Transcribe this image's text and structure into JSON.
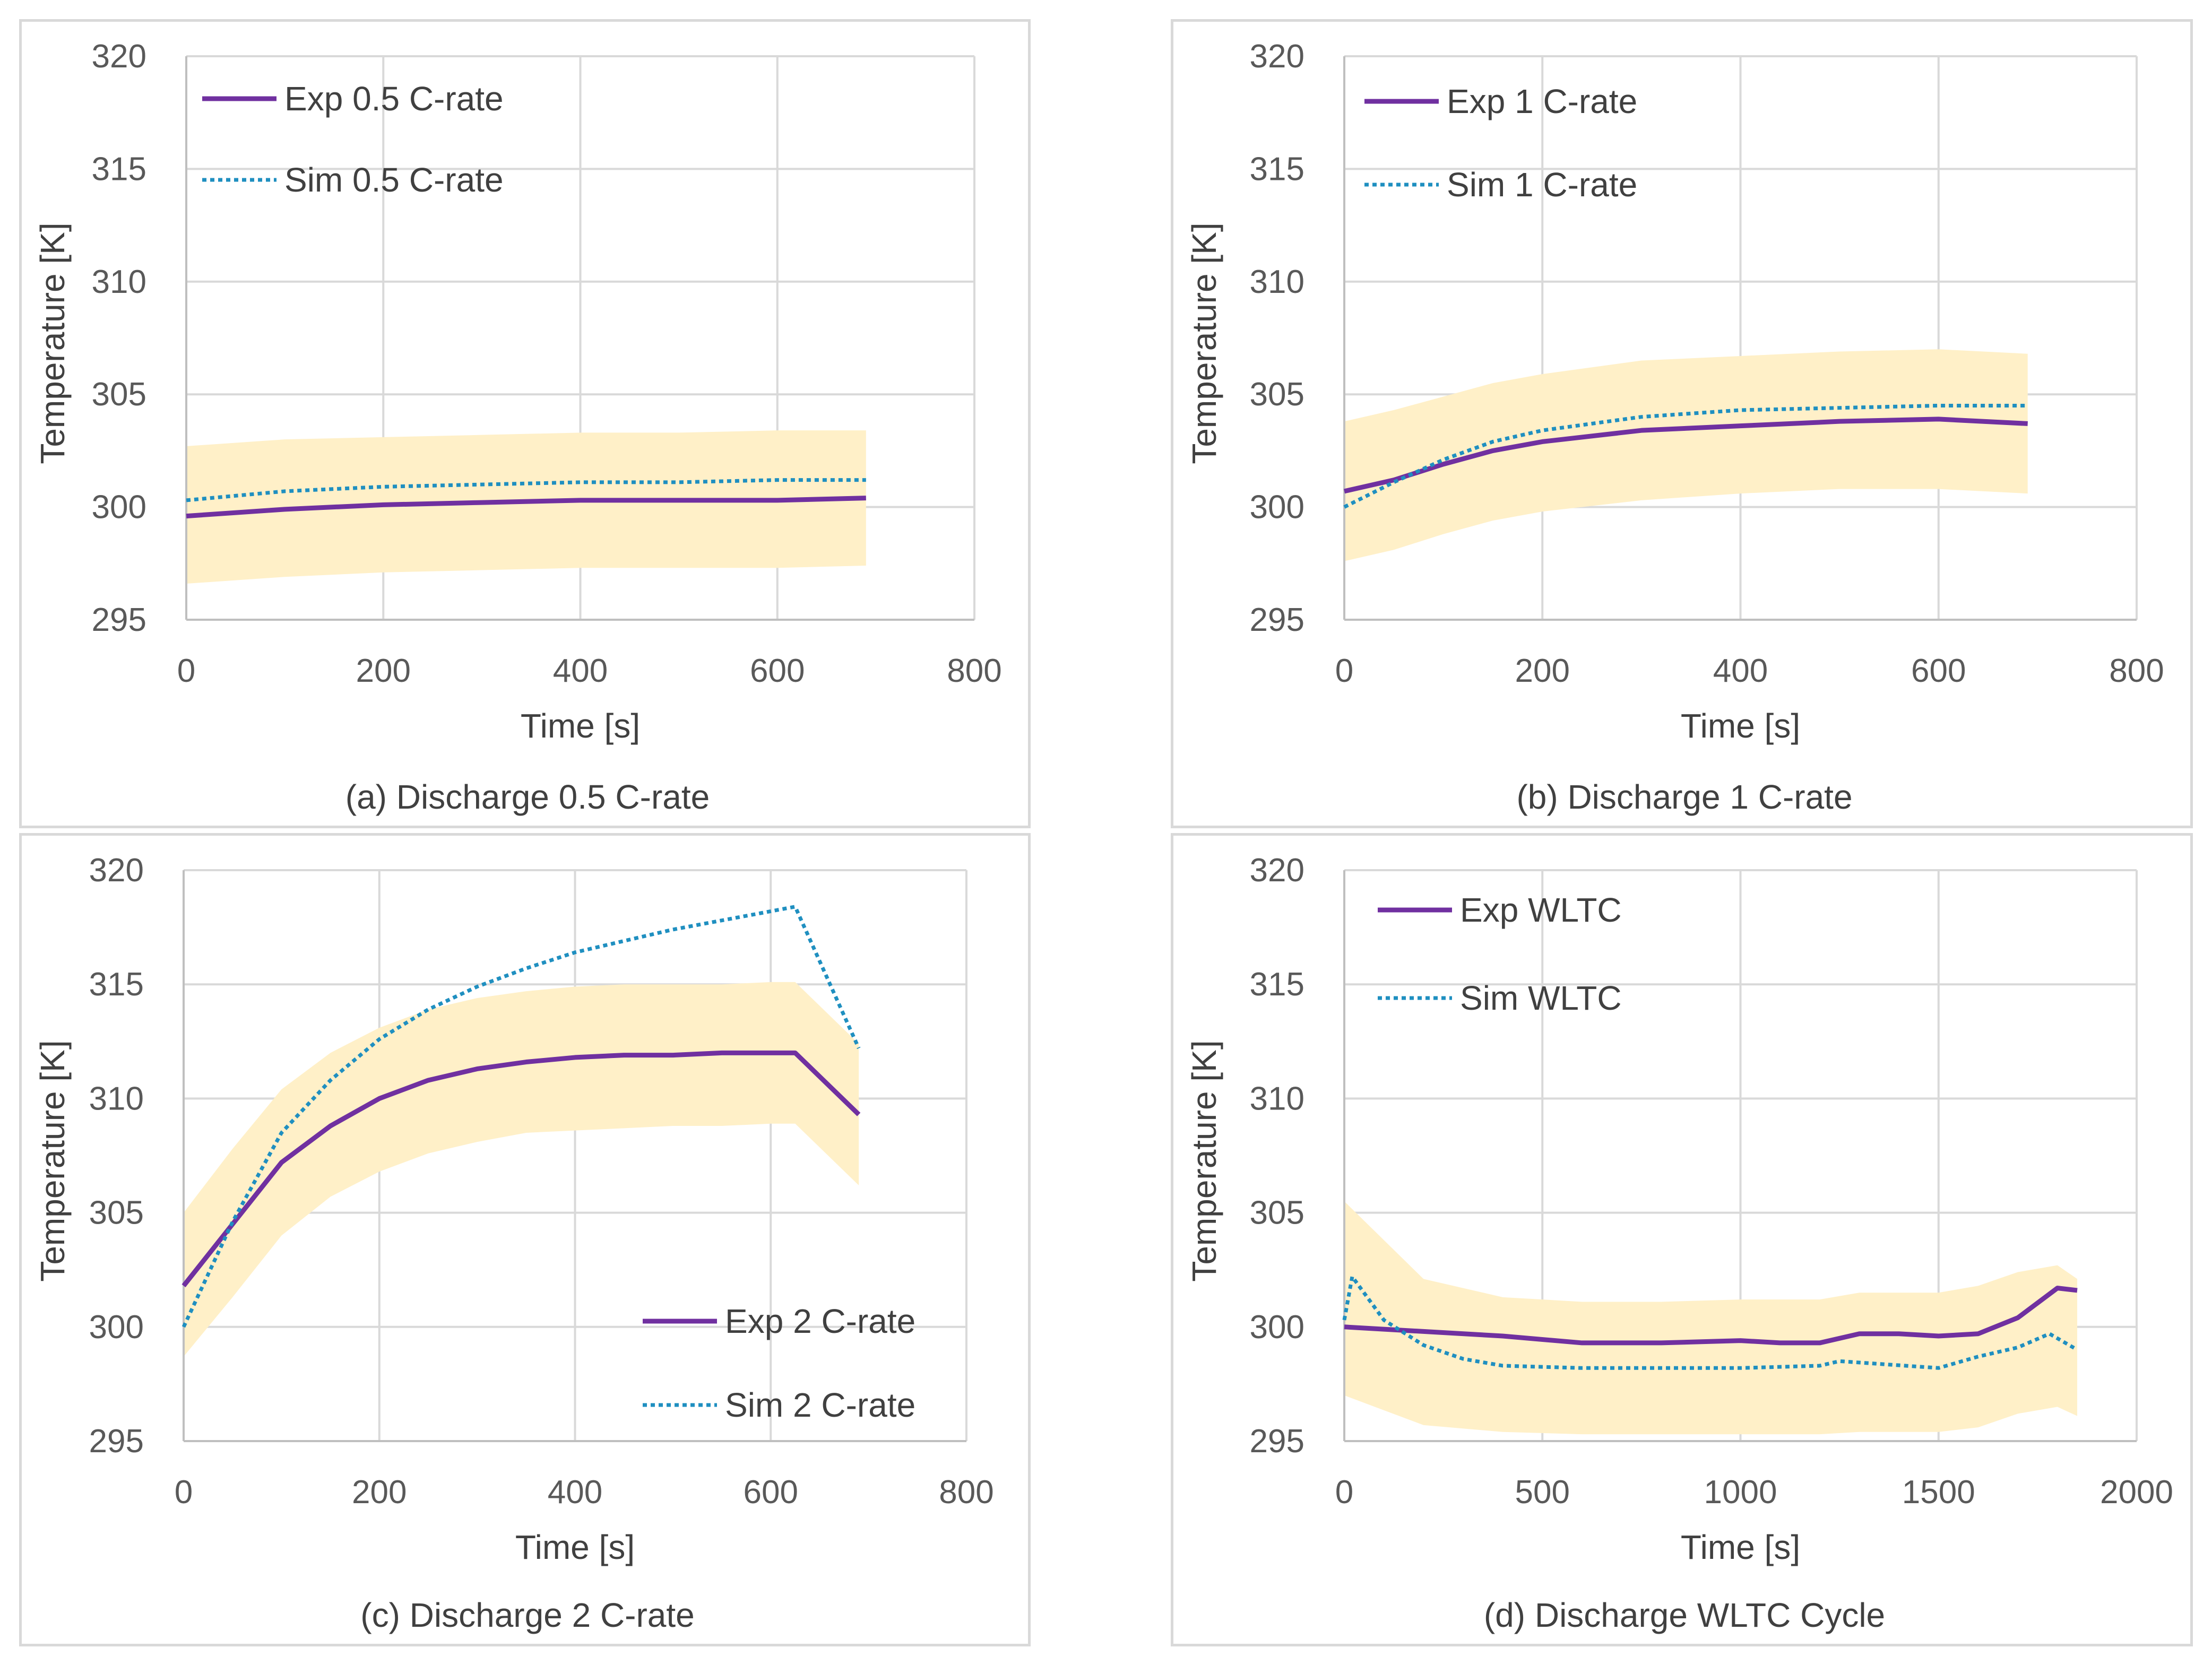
{
  "colors": {
    "exp": "#7030a0",
    "sim": "#1f8fc0",
    "band": "#fff0c8",
    "grid": "#d9d9d9",
    "axis": "#bfbfbf"
  },
  "chart_data": [
    {
      "type": "line",
      "caption": "(a) Discharge 0.5 C-rate",
      "xlabel": "Time [s]",
      "ylabel": "Temperature [K]",
      "xlim": [
        0,
        800
      ],
      "ylim": [
        295,
        320
      ],
      "xticks": [
        0,
        200,
        400,
        600,
        800
      ],
      "yticks": [
        295,
        300,
        305,
        310,
        315,
        320
      ],
      "legend_position": "top-left",
      "series": [
        {
          "name": "Exp 0.5 C-rate",
          "style": "solid",
          "x": [
            0,
            100,
            200,
            300,
            400,
            500,
            600,
            690
          ],
          "values": [
            299.6,
            299.9,
            300.1,
            300.2,
            300.3,
            300.3,
            300.3,
            300.4
          ]
        },
        {
          "name": "Sim 0.5 C-rate",
          "style": "dotted",
          "x": [
            0,
            100,
            200,
            300,
            400,
            500,
            600,
            690
          ],
          "values": [
            300.3,
            300.7,
            300.9,
            301.0,
            301.1,
            301.1,
            301.2,
            301.2
          ]
        }
      ],
      "band": {
        "x": [
          0,
          100,
          200,
          300,
          400,
          500,
          600,
          690
        ],
        "upper": [
          302.7,
          303.0,
          303.1,
          303.2,
          303.3,
          303.3,
          303.4,
          303.4
        ],
        "lower": [
          296.6,
          296.9,
          297.1,
          297.2,
          297.3,
          297.3,
          297.3,
          297.4
        ]
      }
    },
    {
      "type": "line",
      "caption": "(b) Discharge 1 C-rate",
      "xlabel": "Time [s]",
      "ylabel": "Temperature [K]",
      "xlim": [
        0,
        800
      ],
      "ylim": [
        295,
        320
      ],
      "xticks": [
        0,
        200,
        400,
        600,
        800
      ],
      "yticks": [
        295,
        300,
        305,
        310,
        315,
        320
      ],
      "legend_position": "top-left",
      "series": [
        {
          "name": "Exp 1 C-rate",
          "style": "solid",
          "x": [
            0,
            50,
            100,
            150,
            200,
            300,
            400,
            500,
            600,
            690
          ],
          "values": [
            300.7,
            301.2,
            301.9,
            302.5,
            302.9,
            303.4,
            303.6,
            303.8,
            303.9,
            303.7
          ]
        },
        {
          "name": "Sim 1 C-rate",
          "style": "dotted",
          "x": [
            0,
            50,
            100,
            150,
            200,
            300,
            400,
            500,
            600,
            690
          ],
          "values": [
            300.0,
            301.1,
            302.1,
            302.9,
            303.4,
            304.0,
            304.3,
            304.4,
            304.5,
            304.5
          ]
        }
      ],
      "band": {
        "x": [
          0,
          50,
          100,
          150,
          200,
          300,
          400,
          500,
          600,
          690
        ],
        "upper": [
          303.8,
          304.3,
          304.9,
          305.5,
          305.9,
          306.5,
          306.7,
          306.9,
          307.0,
          306.8
        ],
        "lower": [
          297.6,
          298.1,
          298.8,
          299.4,
          299.8,
          300.3,
          300.6,
          300.8,
          300.8,
          300.6
        ]
      }
    },
    {
      "type": "line",
      "caption": "(c) Discharge 2 C-rate",
      "xlabel": "Time [s]",
      "ylabel": "Temperature [K]",
      "xlim": [
        0,
        800
      ],
      "ylim": [
        295,
        320
      ],
      "xticks": [
        0,
        200,
        400,
        600,
        800
      ],
      "yticks": [
        295,
        300,
        305,
        310,
        315,
        320
      ],
      "legend_position": "bottom-right",
      "series": [
        {
          "name": "Exp 2 C-rate",
          "style": "solid",
          "x": [
            0,
            50,
            100,
            150,
            200,
            250,
            300,
            350,
            400,
            450,
            500,
            550,
            600,
            625,
            690
          ],
          "values": [
            301.8,
            304.5,
            307.2,
            308.8,
            310.0,
            310.8,
            311.3,
            311.6,
            311.8,
            311.9,
            311.9,
            312.0,
            312.0,
            312.0,
            309.3
          ]
        },
        {
          "name": "Sim 2 C-rate",
          "style": "dotted",
          "x": [
            0,
            50,
            100,
            150,
            200,
            250,
            300,
            350,
            400,
            450,
            500,
            550,
            600,
            625,
            690
          ],
          "values": [
            300.0,
            304.6,
            308.5,
            310.8,
            312.6,
            313.9,
            314.9,
            315.7,
            316.4,
            316.9,
            317.4,
            317.8,
            318.2,
            318.4,
            312.2
          ]
        }
      ],
      "band": {
        "x": [
          0,
          50,
          100,
          150,
          200,
          250,
          300,
          350,
          400,
          450,
          500,
          550,
          600,
          625,
          690
        ],
        "upper": [
          305.0,
          307.8,
          310.4,
          312.0,
          313.1,
          313.9,
          314.4,
          314.7,
          314.9,
          315.0,
          315.0,
          315.0,
          315.1,
          315.1,
          312.4
        ],
        "lower": [
          298.7,
          301.3,
          304.0,
          305.7,
          306.8,
          307.6,
          308.1,
          308.5,
          308.6,
          308.7,
          308.8,
          308.8,
          308.9,
          308.9,
          306.2
        ]
      }
    },
    {
      "type": "line",
      "caption": "(d) Discharge WLTC Cycle",
      "xlabel": "Time [s]",
      "ylabel": "Temperature [K]",
      "xlim": [
        0,
        2000
      ],
      "ylim": [
        295,
        320
      ],
      "xticks": [
        0,
        500,
        1000,
        1500,
        2000
      ],
      "yticks": [
        295,
        300,
        305,
        310,
        315,
        320
      ],
      "legend_position": "top-left",
      "series": [
        {
          "name": "Exp WLTC",
          "style": "solid",
          "x": [
            0,
            200,
            400,
            600,
            800,
            1000,
            1100,
            1200,
            1300,
            1400,
            1500,
            1600,
            1700,
            1800,
            1850
          ],
          "values": [
            300.0,
            299.8,
            299.6,
            299.3,
            299.3,
            299.4,
            299.3,
            299.3,
            299.7,
            299.7,
            299.6,
            299.7,
            300.4,
            301.7,
            301.6
          ]
        },
        {
          "name": "Sim WLTC",
          "style": "dotted",
          "x": [
            0,
            20,
            100,
            200,
            300,
            400,
            600,
            800,
            1000,
            1200,
            1250,
            1500,
            1600,
            1650,
            1700,
            1780,
            1850
          ],
          "values": [
            300.3,
            302.2,
            300.3,
            299.2,
            298.6,
            298.3,
            298.2,
            298.2,
            298.2,
            298.3,
            298.5,
            298.2,
            298.7,
            298.9,
            299.1,
            299.7,
            299.0
          ]
        }
      ],
      "band": {
        "x": [
          0,
          200,
          400,
          600,
          800,
          1000,
          1200,
          1300,
          1500,
          1600,
          1700,
          1800,
          1850
        ],
        "upper": [
          305.5,
          302.1,
          301.3,
          301.1,
          301.1,
          301.2,
          301.2,
          301.5,
          301.5,
          301.8,
          302.4,
          302.7,
          302.1
        ],
        "lower": [
          297.0,
          295.7,
          295.4,
          295.3,
          295.3,
          295.3,
          295.3,
          295.4,
          295.4,
          295.6,
          296.2,
          296.5,
          296.1
        ]
      }
    }
  ]
}
